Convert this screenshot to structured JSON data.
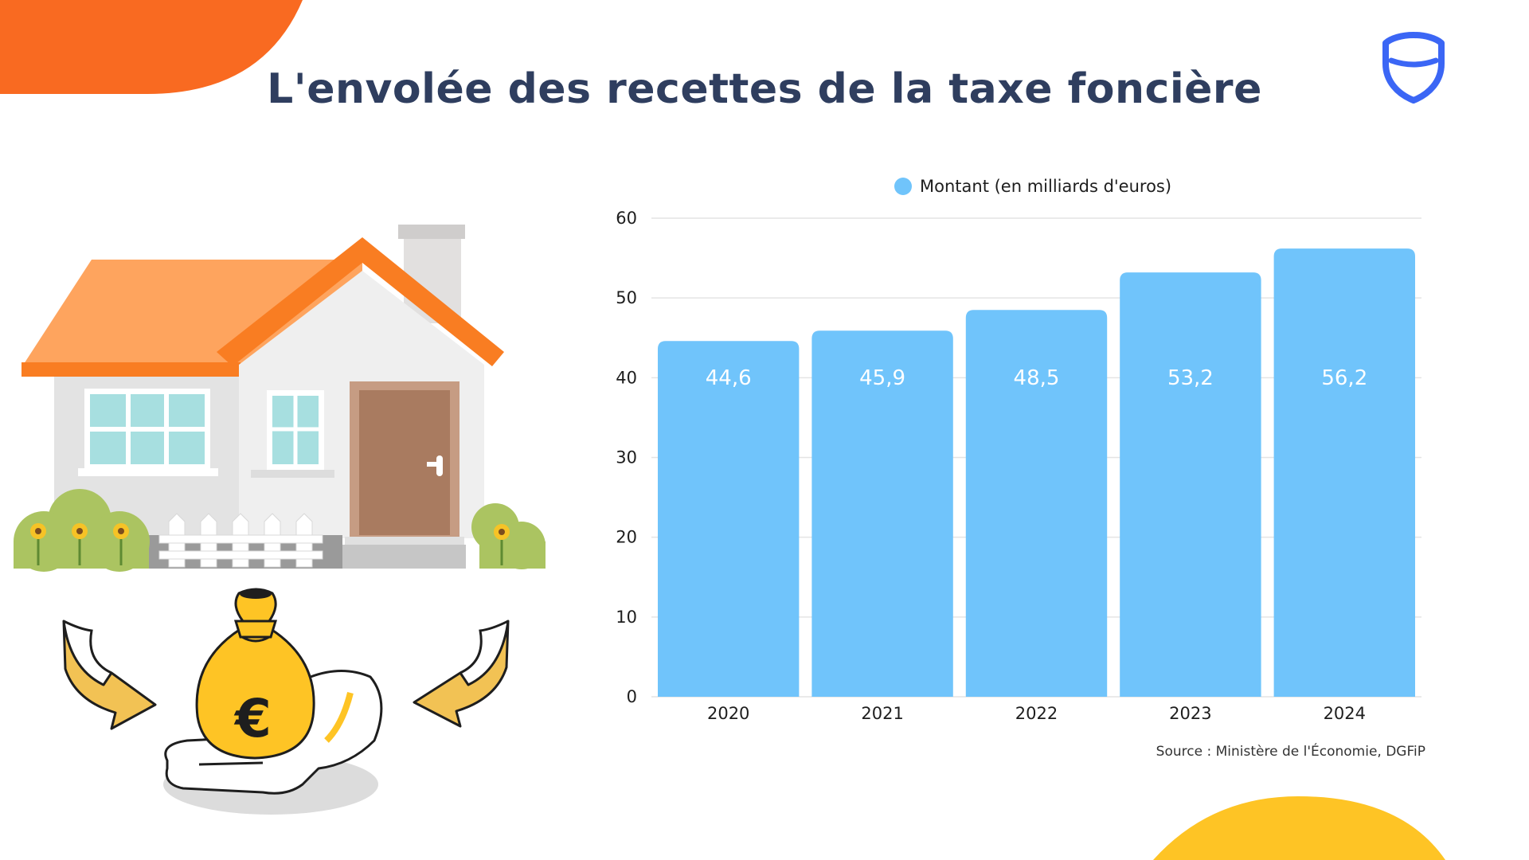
{
  "title": "L'envolée des recettes de la taxe foncière",
  "source": "Source : Ministère de l'Économie, DGFiP",
  "colors": {
    "bar": "#70c4fb",
    "title": "#2f3e5f",
    "orange_accent": "#f96a21",
    "yellow_accent": "#fec425",
    "shield": "#3b66f5"
  },
  "icons": [
    "shield-logo-icon",
    "house-illustration",
    "money-bag-icon",
    "euro-icon",
    "curved-arrow-icon"
  ],
  "chart_data": {
    "type": "bar",
    "categories": [
      "2020",
      "2021",
      "2022",
      "2023",
      "2024"
    ],
    "series": [
      {
        "name": "Montant (en milliards d'euros)",
        "values": [
          44.6,
          45.9,
          48.5,
          53.2,
          56.2
        ],
        "labels": [
          "44,6",
          "45,9",
          "48,5",
          "53,2",
          "56,2"
        ]
      }
    ],
    "ylim": [
      0,
      60
    ],
    "yticks": [
      0,
      10,
      20,
      30,
      40,
      50,
      60
    ],
    "grid": true,
    "legend": "top-center"
  }
}
